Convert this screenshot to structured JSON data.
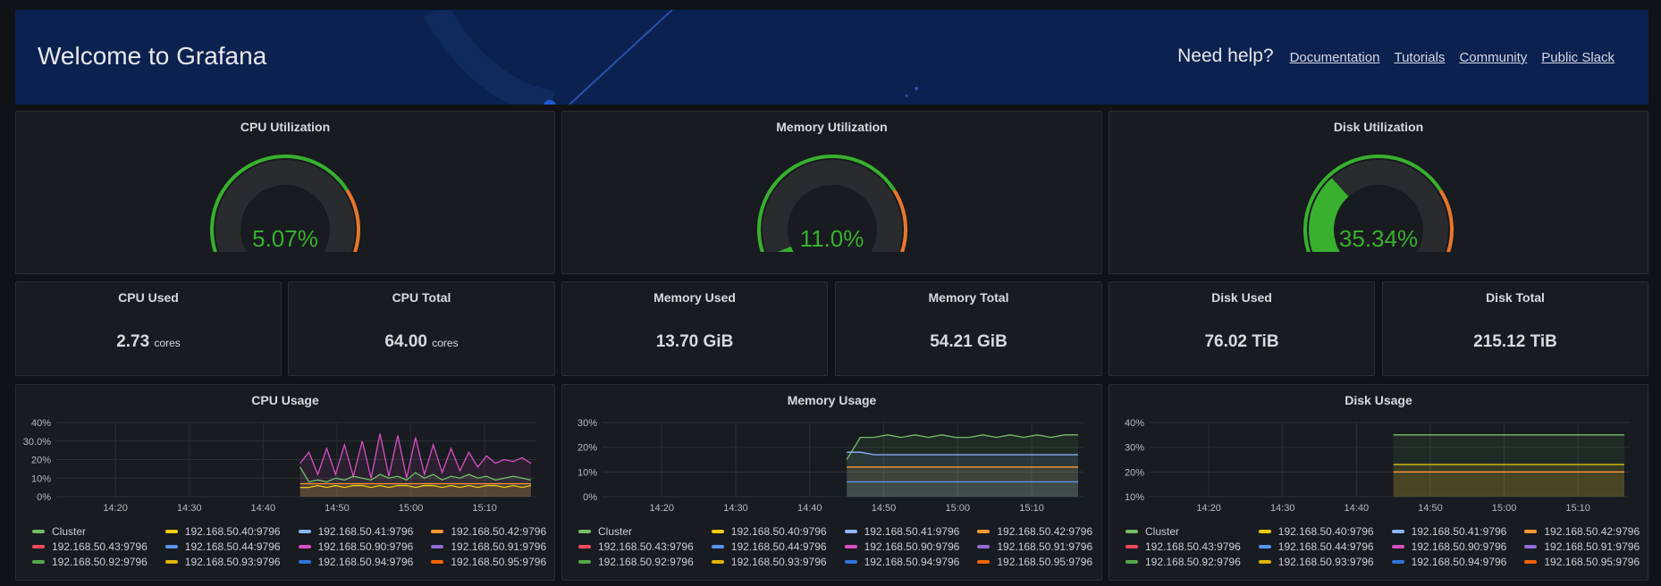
{
  "banner": {
    "title": "Welcome to Grafana",
    "help_label": "Need help?",
    "links": [
      "Documentation",
      "Tutorials",
      "Community",
      "Public Slack"
    ]
  },
  "gauges": [
    {
      "title": "CPU Utilization",
      "value_text": "5.07%",
      "value": 5.07
    },
    {
      "title": "Memory Utilization",
      "value_text": "11.0%",
      "value": 11.0
    },
    {
      "title": "Disk Utilization",
      "value_text": "35.34%",
      "value": 35.34
    }
  ],
  "stats": [
    {
      "title": "CPU Used",
      "value": "2.73",
      "unit": "cores"
    },
    {
      "title": "CPU Total",
      "value": "64.00",
      "unit": "cores"
    },
    {
      "title": "Memory Used",
      "value": "13.70 GiB",
      "unit": ""
    },
    {
      "title": "Memory Total",
      "value": "54.21 GiB",
      "unit": ""
    },
    {
      "title": "Disk Used",
      "value": "76.02 TiB",
      "unit": ""
    },
    {
      "title": "Disk Total",
      "value": "215.12 TiB",
      "unit": ""
    }
  ],
  "colors": {
    "green": "#37b12e",
    "orange": "#e8762c",
    "red": "#e0302c",
    "track": "#2a2b2e"
  },
  "legend_series": [
    {
      "name": "Cluster",
      "color": "#73bf69"
    },
    {
      "name": "192.168.50.40:9796",
      "color": "#f2cc0c"
    },
    {
      "name": "192.168.50.41:9796",
      "color": "#8ab8ff"
    },
    {
      "name": "192.168.50.42:9796",
      "color": "#ff9830"
    },
    {
      "name": "192.168.50.43:9796",
      "color": "#f2495c"
    },
    {
      "name": "192.168.50.44:9796",
      "color": "#5794f2"
    },
    {
      "name": "192.168.50.90:9796",
      "color": "#d64fc4"
    },
    {
      "name": "192.168.50.91:9796",
      "color": "#8f6cd8"
    },
    {
      "name": "192.168.50.92:9796",
      "color": "#56a64b"
    },
    {
      "name": "192.168.50.93:9796",
      "color": "#e0b400"
    },
    {
      "name": "192.168.50.94:9796",
      "color": "#3274d9"
    },
    {
      "name": "192.168.50.95:9796",
      "color": "#fa6400"
    }
  ],
  "chart_data": [
    {
      "type": "line",
      "title": "CPU Usage",
      "x_ticks": [
        "14:20",
        "14:30",
        "14:40",
        "14:50",
        "15:00",
        "15:10"
      ],
      "y_ticks": [
        "40%",
        "30.0%",
        "20%",
        "10%",
        "0%"
      ],
      "ylim": [
        0,
        40
      ],
      "data_start": "14:45",
      "series": [
        {
          "name": "192.168.50.90:9796",
          "values": [
            18,
            24,
            12,
            26,
            12,
            28,
            11,
            30,
            10,
            34,
            11,
            33,
            10,
            32,
            12,
            28,
            13,
            26,
            14,
            24,
            16,
            22,
            18,
            20,
            19,
            21,
            18
          ]
        },
        {
          "name": "Cluster",
          "values": [
            16,
            8,
            9,
            8,
            10,
            9,
            11,
            10,
            9,
            12,
            10,
            11,
            9,
            13,
            10,
            12,
            9,
            11,
            10,
            12,
            10,
            11,
            9,
            10,
            11,
            10,
            9
          ]
        },
        {
          "name": "192.168.50.40:9796",
          "values": [
            5,
            5,
            6,
            5,
            6,
            5,
            6,
            6,
            5,
            6,
            5,
            6,
            6,
            5,
            6,
            6,
            5,
            6,
            5,
            6,
            5,
            6,
            6,
            5,
            6,
            5,
            6
          ]
        },
        {
          "name": "192.168.50.42:9796",
          "values": [
            7,
            7,
            7,
            7,
            7,
            7,
            7,
            7,
            7,
            7,
            7,
            7,
            7,
            7,
            7,
            7,
            7,
            7,
            7,
            7,
            7,
            7,
            7,
            7,
            7,
            7,
            7
          ]
        }
      ]
    },
    {
      "type": "line",
      "title": "Memory Usage",
      "x_ticks": [
        "14:20",
        "14:30",
        "14:40",
        "14:50",
        "15:00",
        "15:10"
      ],
      "y_ticks": [
        "30%",
        "20%",
        "10%",
        "0%"
      ],
      "ylim": [
        0,
        30
      ],
      "data_start": "14:45",
      "series": [
        {
          "name": "Cluster",
          "values": [
            15,
            24,
            24,
            25,
            24,
            25,
            24,
            25,
            24,
            24,
            25,
            24,
            25,
            24,
            25,
            24,
            25,
            25
          ]
        },
        {
          "name": "192.168.50.41:9796",
          "values": [
            18,
            18,
            17,
            17,
            17,
            17,
            17,
            17,
            17,
            17,
            17,
            17,
            17,
            17,
            17,
            17,
            17,
            17
          ]
        },
        {
          "name": "192.168.50.42:9796",
          "values": [
            12,
            12,
            12,
            12,
            12,
            12,
            12,
            12,
            12,
            12,
            12,
            12,
            12,
            12,
            12,
            12,
            12,
            12
          ]
        },
        {
          "name": "192.168.50.44:9796",
          "values": [
            6,
            6,
            6,
            6,
            6,
            6,
            6,
            6,
            6,
            6,
            6,
            6,
            6,
            6,
            6,
            6,
            6,
            6
          ]
        }
      ]
    },
    {
      "type": "line",
      "title": "Disk Usage",
      "x_ticks": [
        "14:20",
        "14:30",
        "14:40",
        "14:50",
        "15:00",
        "15:10"
      ],
      "y_ticks": [
        "40%",
        "30%",
        "20%",
        "10%"
      ],
      "ylim": [
        10,
        40
      ],
      "data_start": "14:45",
      "series": [
        {
          "name": "Cluster",
          "values": [
            35,
            35,
            35,
            35,
            35,
            35,
            35,
            35,
            35,
            35
          ]
        },
        {
          "name": "192.168.50.40:9796",
          "values": [
            23,
            23,
            23,
            23,
            23,
            23,
            23,
            23,
            23,
            23
          ]
        },
        {
          "name": "192.168.50.42:9796",
          "values": [
            20,
            20,
            20,
            20,
            20,
            20,
            20,
            20,
            20,
            20
          ]
        }
      ]
    }
  ]
}
